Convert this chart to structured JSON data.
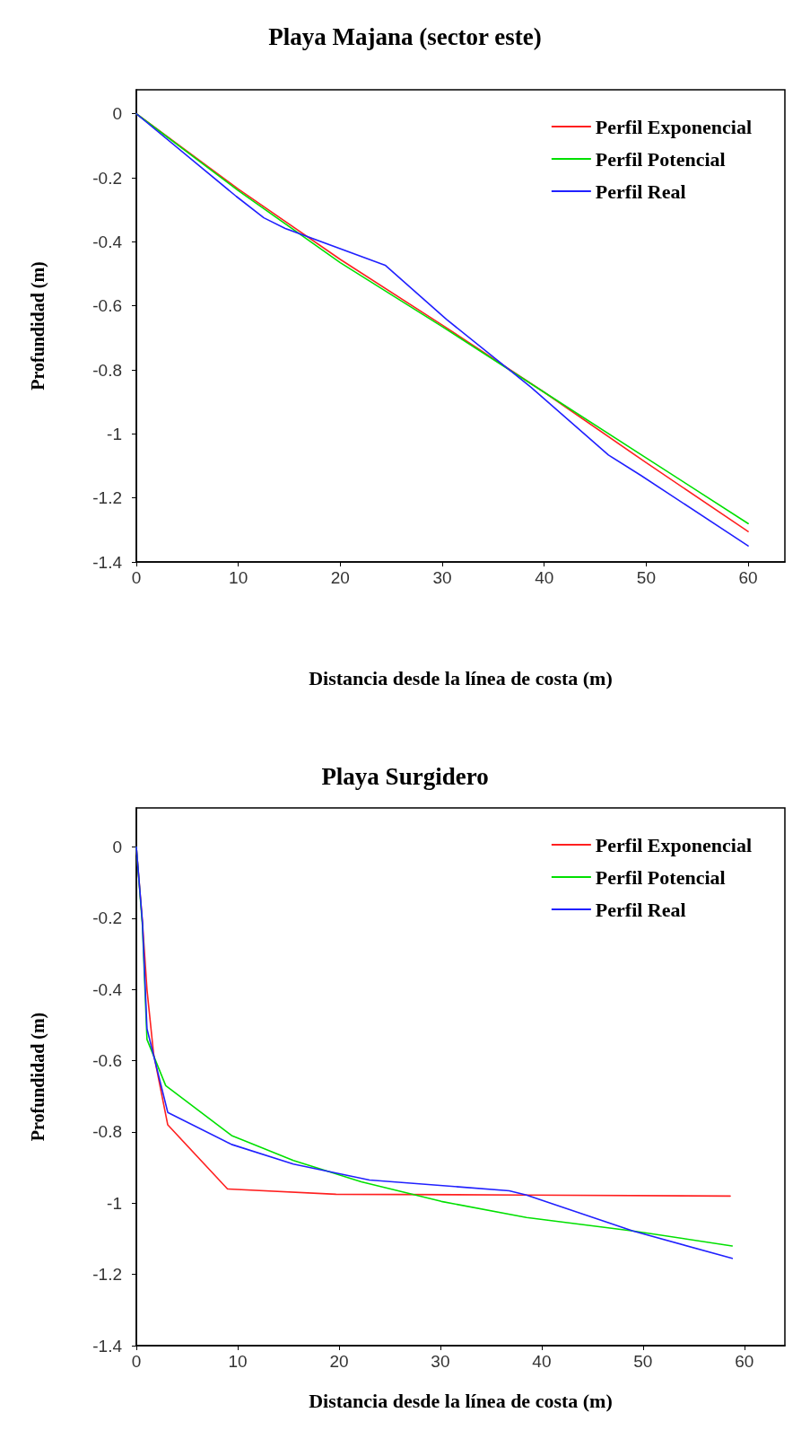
{
  "chart_data": [
    {
      "type": "line",
      "title": "Playa Majana (sector este)",
      "xlabel": "Distancia desde la línea de costa (m)",
      "ylabel": "Profundidad (m)",
      "xlim": [
        0,
        63.6
      ],
      "xticks": [
        0,
        10,
        20,
        30,
        40,
        50,
        60
      ],
      "ylim": [
        -1.4,
        0.075
      ],
      "yticks": [
        -1.4,
        -1.2,
        -1,
        -0.8,
        -0.6,
        -0.4,
        -0.2,
        0
      ],
      "legend": "top right",
      "grid": false,
      "marker": "none",
      "line_style": "solid",
      "series": [
        {
          "name": "Perfil Exponencial",
          "color": "#ff2020",
          "x": [
            0,
            10,
            20,
            30,
            40,
            50,
            60
          ],
          "values": [
            0,
            -0.235,
            -0.455,
            -0.66,
            -0.87,
            -1.09,
            -1.305
          ]
        },
        {
          "name": "Perfil Potencial",
          "color": "#00e000",
          "x": [
            0,
            10,
            20,
            30,
            40,
            50,
            60
          ],
          "values": [
            0,
            -0.24,
            -0.465,
            -0.665,
            -0.87,
            -1.075,
            -1.28
          ]
        },
        {
          "name": "Perfil Real",
          "color": "#2020ff",
          "x": [
            0,
            9.8,
            12.5,
            14.6,
            24.4,
            30.4,
            38.7,
            46.3,
            49.5,
            60
          ],
          "values": [
            0,
            -0.258,
            -0.325,
            -0.358,
            -0.473,
            -0.642,
            -0.854,
            -1.066,
            -1.13,
            -1.35
          ]
        }
      ]
    },
    {
      "type": "line",
      "title": "Playa Surgidero",
      "xlabel": "Distancia desde la línea de costa (m)",
      "ylabel": "Profundidad (m)",
      "xlim": [
        0,
        64
      ],
      "xticks": [
        0,
        10,
        20,
        30,
        40,
        50,
        60
      ],
      "ylim": [
        -1.4,
        0.11
      ],
      "yticks": [
        -1.4,
        -1.2,
        -1,
        -0.8,
        -0.6,
        -0.4,
        -0.2,
        0
      ],
      "legend": "top right",
      "grid": false,
      "marker": "none",
      "line_style": "solid",
      "series": [
        {
          "name": "Perfil Exponencial",
          "color": "#ff2020",
          "x": [
            0,
            0.6,
            1.05,
            1.7,
            3.1,
            9,
            19.7,
            38.5,
            58.6
          ],
          "values": [
            0,
            -0.21,
            -0.4,
            -0.58,
            -0.78,
            -0.96,
            -0.975,
            -0.977,
            -0.98
          ]
        },
        {
          "name": "Perfil Potencial",
          "color": "#00e000",
          "x": [
            0,
            0.6,
            1.05,
            2.9,
            9.4,
            15.5,
            22.2,
            30.1,
            38.5,
            49,
            58.8
          ],
          "values": [
            0,
            -0.22,
            -0.54,
            -0.67,
            -0.81,
            -0.88,
            -0.94,
            -0.995,
            -1.04,
            -1.078,
            -1.12
          ]
        },
        {
          "name": "Perfil Real",
          "color": "#2020ff",
          "x": [
            0,
            0.6,
            1.05,
            3.1,
            9.4,
            15.5,
            23,
            36.8,
            38.5,
            49,
            58.8
          ],
          "values": [
            0,
            -0.21,
            -0.51,
            -0.745,
            -0.835,
            -0.89,
            -0.935,
            -0.965,
            -0.977,
            -1.078,
            -1.155
          ]
        }
      ]
    }
  ]
}
